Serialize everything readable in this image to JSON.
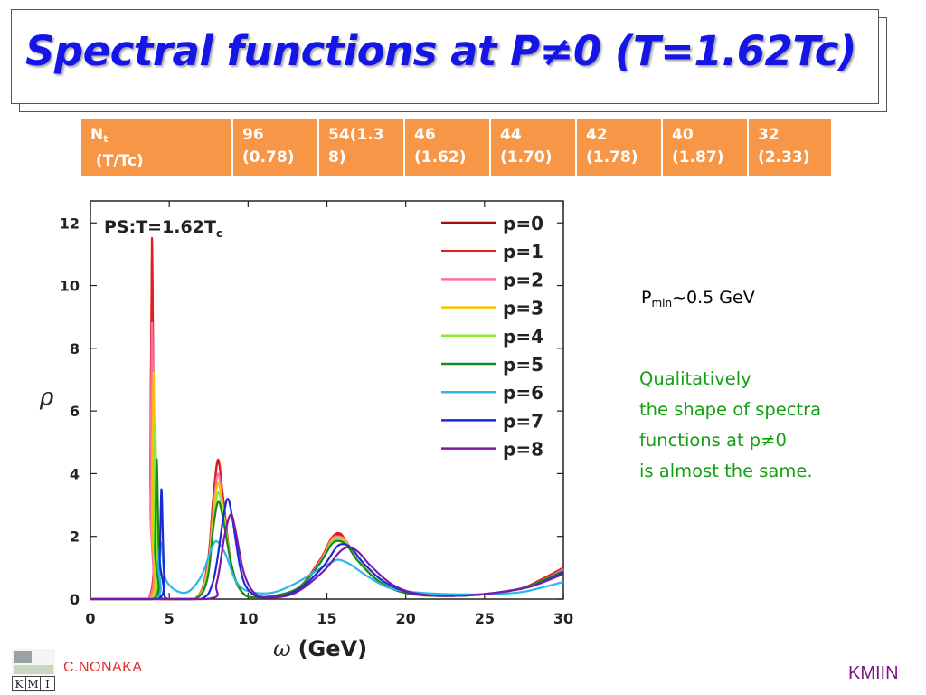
{
  "slide": {
    "title": "Spectral functions at P≠0 (T=1.62Tc)",
    "author": "C.NONAKA",
    "footer": "KMIIN",
    "logo_letters": [
      "K",
      "M",
      "I"
    ]
  },
  "table": {
    "header": {
      "main": "N",
      "sub": "t",
      "second": "(T/Tc)"
    },
    "columns": [
      {
        "line1": "96",
        "line2": "(0.78)"
      },
      {
        "line1": "54(1.3",
        "line2": "8)"
      },
      {
        "line1": "46",
        "line2": "(1.62)"
      },
      {
        "line1": "44",
        "line2": "(1.70)"
      },
      {
        "line1": "42",
        "line2": "(1.78)"
      },
      {
        "line1": "40",
        "line2": "(1.87)"
      },
      {
        "line1": "32",
        "line2": "(2.33)"
      }
    ]
  },
  "notes": {
    "pmin_main": "P",
    "pmin_sub": "min",
    "pmin_rest": "~0.5 GeV",
    "qualitative": [
      "Qualitatively",
      "the shape of spectra",
      "functions at p≠0",
      "is almost the same."
    ]
  },
  "chart_data": {
    "type": "line",
    "title": "PS:T=1.62T",
    "title_sub": "c",
    "xlabel": "ω",
    "xlabel_unit": "(GeV)",
    "ylabel": "ρ",
    "xlim": [
      0,
      30
    ],
    "ylim": [
      0,
      12.7
    ],
    "xticks": [
      0,
      5,
      10,
      15,
      20,
      25,
      30
    ],
    "yticks": [
      0,
      2,
      4,
      6,
      8,
      10,
      12
    ],
    "grid": false,
    "legend_position": "top-right",
    "series": [
      {
        "name": "p=0",
        "color": "#a01010",
        "x": [
          0,
          3.7,
          3.8,
          3.9,
          4.0,
          4.1,
          4.3,
          6.6,
          7.4,
          7.8,
          8.1,
          8.4,
          8.9,
          9.5,
          10.5,
          13.0,
          14.5,
          15.3,
          15.7,
          16.2,
          17.0,
          18.5,
          20.5,
          24.0,
          27.0,
          28.5,
          30.0
        ],
        "y": [
          0,
          0,
          4.0,
          10.8,
          6.0,
          1.5,
          0,
          0,
          1.0,
          3.2,
          4.4,
          3.3,
          1.2,
          0.3,
          0.05,
          0.3,
          1.2,
          1.9,
          2.05,
          1.8,
          1.2,
          0.5,
          0.15,
          0.12,
          0.3,
          0.6,
          1.0
        ]
      },
      {
        "name": "p=1",
        "color": "#e02020",
        "x": [
          0,
          3.7,
          3.8,
          3.9,
          4.0,
          4.1,
          4.3,
          6.6,
          7.4,
          7.8,
          8.1,
          8.4,
          8.9,
          9.5,
          10.5,
          13.0,
          14.5,
          15.3,
          15.8,
          16.2,
          17.0,
          18.5,
          20.5,
          24.0,
          27.0,
          28.5,
          30.0
        ],
        "y": [
          0,
          0,
          4.2,
          11.5,
          6.2,
          1.5,
          0,
          0,
          1.0,
          3.3,
          4.45,
          3.3,
          1.2,
          0.3,
          0.05,
          0.3,
          1.2,
          1.95,
          2.1,
          1.85,
          1.2,
          0.5,
          0.15,
          0.12,
          0.3,
          0.6,
          1.0
        ]
      },
      {
        "name": "p=2",
        "color": "#ff70a8",
        "x": [
          0,
          3.7,
          3.8,
          3.9,
          4.0,
          4.1,
          4.3,
          6.6,
          7.4,
          7.8,
          8.1,
          8.4,
          8.9,
          9.5,
          10.5,
          13.0,
          14.5,
          15.3,
          15.8,
          16.3,
          17.0,
          18.5,
          20.5,
          24.0,
          27.0,
          28.5,
          30.0
        ],
        "y": [
          0,
          0,
          3.0,
          8.8,
          4.5,
          1.2,
          0,
          0,
          0.9,
          2.9,
          4.0,
          3.0,
          1.2,
          0.3,
          0.05,
          0.3,
          1.15,
          1.9,
          2.0,
          1.8,
          1.2,
          0.5,
          0.15,
          0.12,
          0.3,
          0.55,
          0.95
        ]
      },
      {
        "name": "p=3",
        "color": "#f5c400",
        "x": [
          0,
          3.8,
          3.9,
          4.0,
          4.1,
          4.2,
          4.4,
          6.6,
          7.4,
          7.8,
          8.1,
          8.4,
          8.9,
          9.5,
          10.5,
          13.0,
          14.5,
          15.3,
          15.8,
          16.3,
          17.0,
          18.5,
          20.5,
          24.0,
          27.0,
          28.5,
          30.0
        ],
        "y": [
          0,
          0,
          2.5,
          7.2,
          3.8,
          1.0,
          0,
          0,
          0.8,
          2.7,
          3.7,
          2.9,
          1.2,
          0.3,
          0.05,
          0.3,
          1.1,
          1.85,
          1.95,
          1.75,
          1.2,
          0.5,
          0.15,
          0.12,
          0.3,
          0.55,
          0.9
        ]
      },
      {
        "name": "p=4",
        "color": "#8ee83a",
        "x": [
          0,
          3.9,
          4.0,
          4.1,
          4.2,
          4.3,
          4.5,
          6.6,
          7.4,
          7.8,
          8.1,
          8.4,
          8.9,
          9.5,
          10.5,
          13.0,
          14.5,
          15.3,
          15.8,
          16.3,
          17.0,
          18.5,
          20.5,
          24.0,
          27.0,
          28.5,
          30.0
        ],
        "y": [
          0,
          0,
          2.0,
          5.6,
          3.0,
          0.8,
          0,
          0,
          0.7,
          2.5,
          3.4,
          2.8,
          1.2,
          0.3,
          0.05,
          0.3,
          1.1,
          1.8,
          1.9,
          1.7,
          1.2,
          0.5,
          0.15,
          0.12,
          0.3,
          0.55,
          0.9
        ]
      },
      {
        "name": "p=5",
        "color": "#1a8a1a",
        "x": [
          0,
          4.0,
          4.1,
          4.2,
          4.3,
          4.4,
          4.6,
          6.6,
          7.4,
          7.8,
          8.1,
          8.4,
          8.9,
          9.5,
          10.5,
          13.0,
          14.5,
          15.3,
          15.8,
          16.3,
          17.0,
          18.5,
          20.5,
          24.0,
          27.0,
          28.5,
          30.0
        ],
        "y": [
          0,
          0,
          1.6,
          4.45,
          2.4,
          0.6,
          0,
          0,
          0.6,
          2.3,
          3.1,
          2.6,
          1.2,
          0.3,
          0.05,
          0.3,
          1.1,
          1.75,
          1.85,
          1.7,
          1.2,
          0.5,
          0.15,
          0.12,
          0.3,
          0.55,
          0.9
        ]
      },
      {
        "name": "p=6",
        "color": "#28b8e8",
        "x": [
          0,
          4.1,
          4.3,
          4.5,
          4.8,
          6.0,
          7.0,
          7.6,
          8.0,
          8.6,
          9.2,
          10.0,
          11.5,
          13.0,
          14.5,
          15.4,
          15.8,
          16.5,
          17.5,
          19.0,
          21.0,
          24.0,
          27.0,
          28.5,
          30.0
        ],
        "y": [
          0,
          0,
          1.1,
          1.8,
          0.6,
          0.2,
          0.7,
          1.5,
          1.85,
          1.4,
          0.6,
          0.25,
          0.2,
          0.5,
          0.95,
          1.2,
          1.25,
          1.1,
          0.75,
          0.35,
          0.2,
          0.15,
          0.2,
          0.35,
          0.55
        ]
      },
      {
        "name": "p=7",
        "color": "#1a2ad8",
        "x": [
          0,
          4.3,
          4.4,
          4.5,
          4.6,
          4.7,
          4.9,
          7.0,
          7.8,
          8.4,
          8.7,
          9.0,
          9.5,
          10.0,
          11.0,
          13.0,
          14.7,
          15.6,
          16.1,
          16.6,
          17.4,
          18.8,
          20.8,
          24.0,
          27.0,
          28.5,
          30.0
        ],
        "y": [
          0,
          0,
          1.3,
          3.5,
          1.9,
          0.5,
          0,
          0,
          0.6,
          2.5,
          3.2,
          2.6,
          1.0,
          0.3,
          0.05,
          0.25,
          1.0,
          1.65,
          1.75,
          1.6,
          1.1,
          0.5,
          0.15,
          0.12,
          0.3,
          0.5,
          0.85
        ]
      },
      {
        "name": "p=8",
        "color": "#7a1aa8",
        "x": [
          0,
          7.3,
          8.0,
          8.5,
          8.9,
          9.2,
          9.7,
          10.3,
          11.2,
          13.0,
          14.8,
          15.8,
          16.4,
          17.0,
          17.8,
          19.2,
          21.0,
          24.0,
          27.0,
          28.5,
          30.0
        ],
        "y": [
          0,
          0,
          0.5,
          2.0,
          2.7,
          2.2,
          0.9,
          0.25,
          0.05,
          0.2,
          0.9,
          1.5,
          1.65,
          1.5,
          1.05,
          0.45,
          0.15,
          0.12,
          0.3,
          0.5,
          0.8
        ]
      }
    ]
  }
}
